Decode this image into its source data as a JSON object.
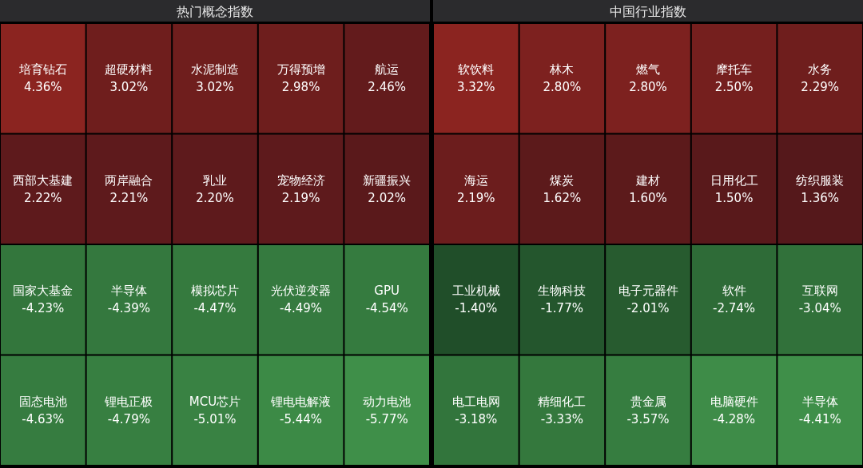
{
  "chart_data": [
    {
      "type": "other",
      "title": "热门概念指数",
      "categories": [
        "培育钻石",
        "超硬材料",
        "水泥制造",
        "万得预增",
        "航运",
        "西部大基建",
        "两岸融合",
        "乳业",
        "宠物经济",
        "新疆振兴",
        "国家大基金",
        "半导体",
        "模拟芯片",
        "光伏逆变器",
        "GPU",
        "固态电池",
        "锂电正极",
        "MCU芯片",
        "锂电电解液",
        "动力电池"
      ],
      "values": [
        4.36,
        3.02,
        3.02,
        2.98,
        2.46,
        2.22,
        2.21,
        2.2,
        2.19,
        2.02,
        -4.23,
        -4.39,
        -4.47,
        -4.49,
        -4.54,
        -4.63,
        -4.79,
        -5.01,
        -5.44,
        -5.77
      ],
      "value_labels": [
        "4.36%",
        "3.02%",
        "3.02%",
        "2.98%",
        "2.46%",
        "2.22%",
        "2.21%",
        "2.20%",
        "2.19%",
        "2.02%",
        "-4.23%",
        "-4.39%",
        "-4.47%",
        "-4.49%",
        "-4.54%",
        "-4.63%",
        "-4.79%",
        "-5.01%",
        "-5.44%",
        "-5.77%"
      ]
    },
    {
      "type": "other",
      "title": "中国行业指数",
      "categories": [
        "软饮料",
        "林木",
        "燃气",
        "摩托车",
        "水务",
        "海运",
        "煤炭",
        "建材",
        "日用化工",
        "纺织服装",
        "工业机械",
        "生物科技",
        "电子元器件",
        "软件",
        "互联网",
        "电工电网",
        "精细化工",
        "贵金属",
        "电脑硬件",
        "半导体"
      ],
      "values": [
        3.32,
        2.8,
        2.8,
        2.5,
        2.29,
        2.19,
        1.62,
        1.6,
        1.5,
        1.36,
        -1.4,
        -1.77,
        -2.01,
        -2.74,
        -3.04,
        -3.18,
        -3.33,
        -3.57,
        -4.28,
        -4.41
      ],
      "value_labels": [
        "3.32%",
        "2.80%",
        "2.80%",
        "2.50%",
        "2.29%",
        "2.19%",
        "1.62%",
        "1.60%",
        "1.50%",
        "1.36%",
        "-1.40%",
        "-1.77%",
        "-2.01%",
        "-2.74%",
        "-3.04%",
        "-3.18%",
        "-3.33%",
        "-3.57%",
        "-4.28%",
        "-4.41%"
      ]
    }
  ]
}
